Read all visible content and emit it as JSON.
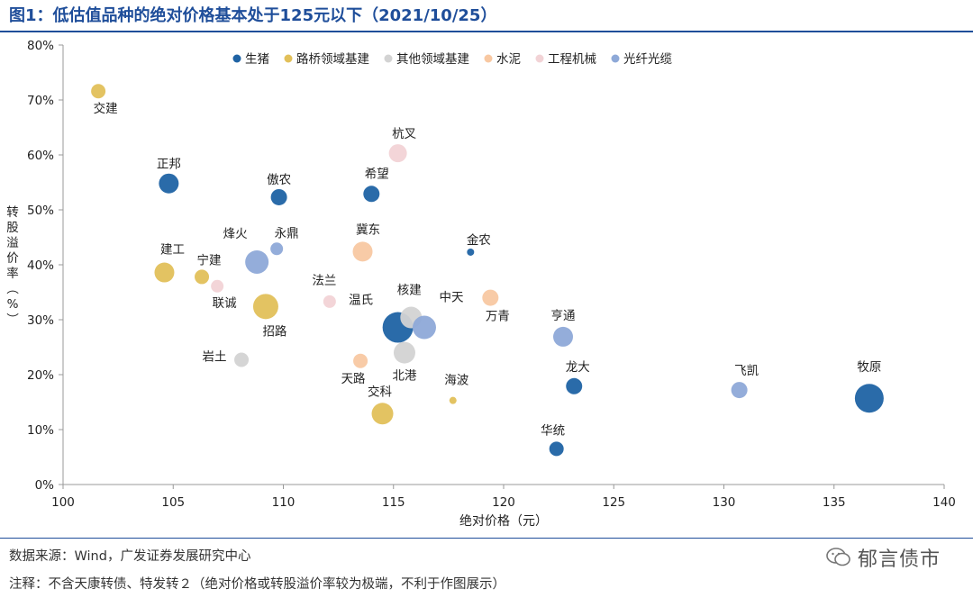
{
  "figure": {
    "title": "图1：低估值品种的绝对价格基本处于125元以下（2021/10/25）",
    "source": "数据来源：Wind，广发证券发展研究中心",
    "note": "注释：不含天康转债、特发转２（绝对价格或转股溢价率较为极端，不利于作图展示）",
    "watermark": "郁言债市"
  },
  "chart_data": {
    "type": "scatter",
    "title": "",
    "xlabel": "绝对价格（元）",
    "ylabel": "转股溢价率（%）",
    "xlim": [
      100,
      140
    ],
    "ylim": [
      0,
      80
    ],
    "xticks": [
      "100",
      "105",
      "110",
      "115",
      "120",
      "125",
      "130",
      "135",
      "140"
    ],
    "yticks": [
      "0%",
      "10%",
      "20%",
      "30%",
      "40%",
      "50%",
      "60%",
      "70%",
      "80%"
    ],
    "legend_position": "top",
    "series": [
      {
        "name": "生猪",
        "color": "#1f63a4",
        "points": [
          {
            "label": "正邦",
            "x": 104.8,
            "y": 54.8,
            "size": 11
          },
          {
            "label": "傲农",
            "x": 109.8,
            "y": 52.3,
            "size": 9
          },
          {
            "label": "希望",
            "x": 114.0,
            "y": 52.9,
            "size": 9
          },
          {
            "label": "金农",
            "x": 118.5,
            "y": 42.3,
            "size": 4
          },
          {
            "label": "温氏",
            "x": 115.2,
            "y": 28.6,
            "size": 17
          },
          {
            "label": "龙大",
            "x": 123.2,
            "y": 17.9,
            "size": 9
          },
          {
            "label": "华统",
            "x": 122.4,
            "y": 6.5,
            "size": 8
          },
          {
            "label": "牧原",
            "x": 136.6,
            "y": 15.7,
            "size": 16
          }
        ]
      },
      {
        "name": "路桥领域基建",
        "color": "#e2c05a",
        "points": [
          {
            "label": "交建",
            "x": 101.6,
            "y": 71.6,
            "size": 8
          },
          {
            "label": "建工",
            "x": 104.6,
            "y": 38.6,
            "size": 11
          },
          {
            "label": "宁建",
            "x": 106.3,
            "y": 37.8,
            "size": 8
          },
          {
            "label": "招路",
            "x": 109.2,
            "y": 32.4,
            "size": 14
          },
          {
            "label": "交科",
            "x": 114.5,
            "y": 12.9,
            "size": 12
          },
          {
            "label": "海波",
            "x": 117.7,
            "y": 15.3,
            "size": 4
          }
        ]
      },
      {
        "name": "其他领域基建",
        "color": "#d3d3d3",
        "points": [
          {
            "label": "核建",
            "x": 115.8,
            "y": 30.4,
            "size": 12
          },
          {
            "label": "北港",
            "x": 115.5,
            "y": 24.0,
            "size": 12
          },
          {
            "label": "岩土",
            "x": 108.1,
            "y": 22.7,
            "size": 8
          }
        ]
      },
      {
        "name": "水泥",
        "color": "#f8c8a2",
        "points": [
          {
            "label": "冀东",
            "x": 113.6,
            "y": 42.4,
            "size": 11
          },
          {
            "label": "万青",
            "x": 119.4,
            "y": 34.0,
            "size": 9
          },
          {
            "label": "天路",
            "x": 113.5,
            "y": 22.5,
            "size": 8
          }
        ]
      },
      {
        "name": "工程机械",
        "color": "#f2d3d6",
        "points": [
          {
            "label": "杭叉",
            "x": 115.2,
            "y": 60.3,
            "size": 10
          },
          {
            "label": "联诚",
            "x": 107.0,
            "y": 36.1,
            "size": 7
          },
          {
            "label": "法兰",
            "x": 112.1,
            "y": 33.3,
            "size": 7
          }
        ]
      },
      {
        "name": "光纤光缆",
        "color": "#8ea9d8",
        "points": [
          {
            "label": "永鼎",
            "x": 109.7,
            "y": 42.9,
            "size": 7
          },
          {
            "label": "烽火",
            "x": 108.8,
            "y": 40.5,
            "size": 13
          },
          {
            "label": "中天",
            "x": 116.4,
            "y": 28.6,
            "size": 13
          },
          {
            "label": "亨通",
            "x": 122.7,
            "y": 26.9,
            "size": 11
          },
          {
            "label": "飞凯",
            "x": 130.7,
            "y": 17.2,
            "size": 9
          }
        ]
      }
    ]
  }
}
